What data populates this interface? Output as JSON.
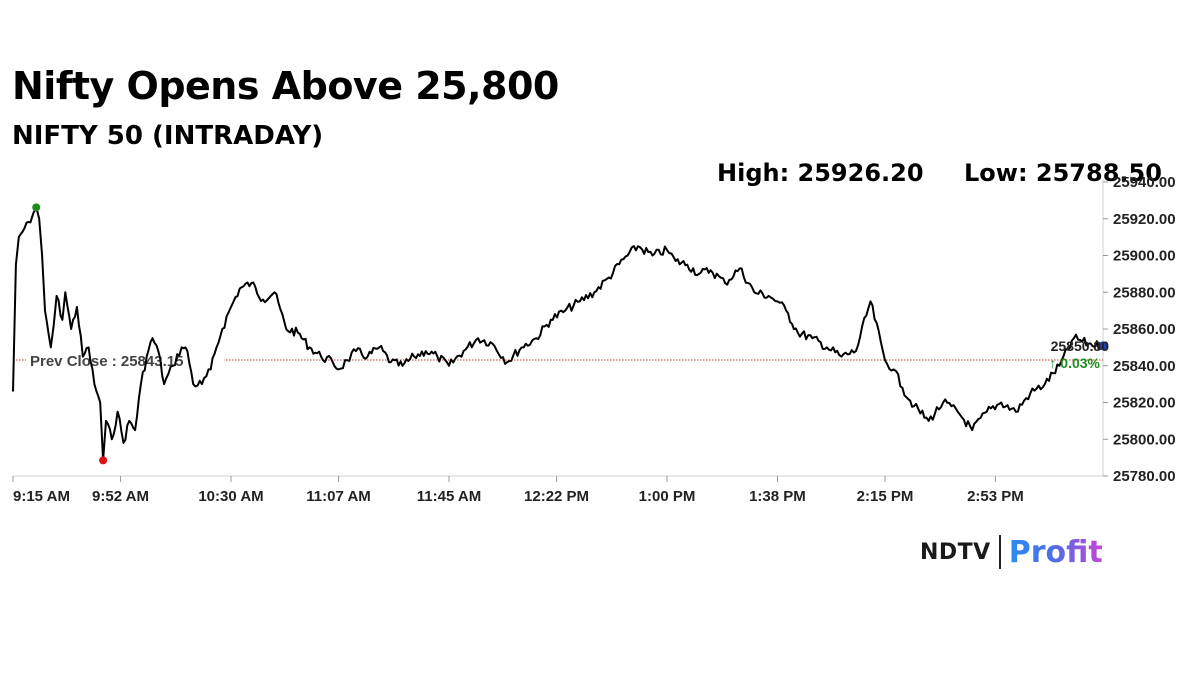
{
  "headline": "Nifty Opens Above 25,800",
  "subtitle": "NIFTY 50 (INTRADAY)",
  "stats": {
    "high": "High: 25926.20",
    "low": "Low: 25788.50"
  },
  "brand": {
    "left": "NDTV",
    "right": "Profit",
    "colors": [
      "#2a8cf0",
      "#c445d6"
    ]
  },
  "chart_data": {
    "type": "line",
    "title": "NIFTY 50 (INTRADAY)",
    "ylim": [
      25780,
      25940
    ],
    "y_ticks": [
      25780,
      25800,
      25820,
      25840,
      25860,
      25880,
      25900,
      25920,
      25940
    ],
    "y_tick_labels": [
      "25780.00",
      "25800.00",
      "25820.00",
      "25840.00",
      "25860.00",
      "25880.00",
      "25900.00",
      "25920.00",
      "25940.00"
    ],
    "x_tick_labels": [
      "9:15 AM",
      "9:52 AM",
      "10:30 AM",
      "11:07 AM",
      "11:45 AM",
      "12:22 PM",
      "1:00 PM",
      "1:38 PM",
      "2:15 PM",
      "2:53 PM"
    ],
    "x_tick_minutes": [
      0,
      37,
      75,
      112,
      150,
      187,
      225,
      263,
      300,
      338
    ],
    "time_range_minutes": [
      0,
      375
    ],
    "series": [
      {
        "color": "#000000",
        "t": [
          0,
          1,
          2,
          4,
          6,
          7,
          8,
          9,
          10,
          11,
          13,
          14,
          15,
          17,
          18,
          20,
          22,
          24,
          26,
          28,
          30,
          31,
          32,
          34,
          36,
          38,
          40,
          42,
          44,
          46,
          48,
          50,
          52,
          55,
          58,
          60,
          62,
          65,
          68,
          70,
          72,
          75,
          78,
          82,
          86,
          90,
          94,
          98,
          102,
          106,
          110,
          112,
          115,
          118,
          122,
          126,
          130,
          134,
          138,
          142,
          146,
          150,
          155,
          160,
          165,
          170,
          175,
          180,
          185,
          190,
          195,
          200,
          205,
          210,
          215,
          220,
          225,
          228,
          232,
          236,
          240,
          245,
          250,
          255,
          260,
          263,
          266,
          270,
          275,
          280,
          285,
          290,
          295,
          300,
          303,
          306,
          310,
          315,
          320,
          325,
          330,
          335,
          340,
          345,
          350,
          355,
          360,
          365,
          370,
          375
        ],
        "values": [
          25826,
          25895,
          25910,
          25915,
          25918,
          25923,
          25926.2,
          25920,
          25900,
          25870,
          25850,
          25862,
          25878,
          25865,
          25880,
          25860,
          25872,
          25845,
          25850,
          25830,
          25820,
          25788.5,
          25810,
          25800,
          25815,
          25798,
          25810,
          25805,
          25830,
          25845,
          25855,
          25848,
          25830,
          25840,
          25850,
          25848,
          25830,
          25830,
          25838,
          25850,
          25860,
          25872,
          25882,
          25885,
          25876,
          25880,
          25860,
          25858,
          25850,
          25845,
          25842,
          25838,
          25843,
          25848,
          25845,
          25850,
          25842,
          25840,
          25845,
          25848,
          25845,
          25840,
          25848,
          25855,
          25852,
          25842,
          25850,
          25855,
          25865,
          25870,
          25875,
          25880,
          25888,
          25898,
          25905,
          25900,
          25903,
          25897,
          25895,
          25890,
          25892,
          25885,
          25893,
          25880,
          25878,
          25875,
          25870,
          25858,
          25855,
          25850,
          25845,
          25848,
          25875,
          25843,
          25838,
          25828,
          25818,
          25810,
          25820,
          25815,
          25805,
          25815,
          25820,
          25815,
          25825,
          25830,
          25840,
          25855,
          25852,
          25850.8
        ]
      }
    ],
    "reference_line": {
      "value": 25843.15,
      "label": "Prev Close : 25843.15",
      "color": "#c0392b"
    },
    "high_marker": {
      "t": 8,
      "value": 25926.2,
      "color": "#1e8c1e"
    },
    "low_marker": {
      "t": 31,
      "value": 25788.5,
      "color": "#e01010"
    },
    "last_marker": {
      "t": 375,
      "value": 25850.8,
      "color": "#1f3fbf"
    },
    "last_value_label": "25850.80",
    "change_label": "↑ 0.03%",
    "change_color": "#1e8c1e",
    "grid": false
  }
}
